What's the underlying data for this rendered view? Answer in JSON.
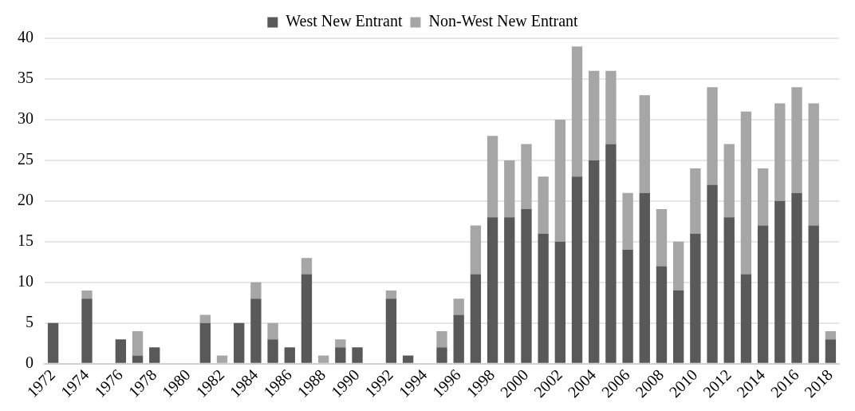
{
  "chart_data": {
    "type": "bar",
    "stacked": true,
    "legend": "top",
    "grid": "y",
    "categories": [
      "1972",
      null,
      "1974",
      null,
      "1976",
      null,
      "1978",
      null,
      "1980",
      null,
      "1982",
      null,
      "1984",
      null,
      "1986",
      null,
      "1988",
      null,
      "1990",
      null,
      "1992",
      null,
      "1994",
      null,
      "1996",
      null,
      "1998",
      null,
      "2000",
      null,
      "2002",
      null,
      "2004",
      null,
      "2006",
      null,
      "2008",
      null,
      "2010",
      null,
      "2012",
      null,
      "2014",
      null,
      "2016",
      null,
      "2018"
    ],
    "series": [
      {
        "name": "West New Entrant",
        "color": "#595959",
        "values": [
          5,
          0,
          8,
          0,
          3,
          1,
          2,
          0,
          0,
          5,
          0,
          5,
          8,
          3,
          2,
          11,
          0,
          2,
          2,
          0,
          8,
          1,
          0,
          2,
          6,
          11,
          18,
          18,
          19,
          16,
          15,
          23,
          25,
          27,
          14,
          21,
          12,
          9,
          16,
          22,
          18,
          11,
          17,
          20,
          21,
          17,
          3
        ]
      },
      {
        "name": "Non-West New Entrant",
        "color": "#a6a6a6",
        "values": [
          0,
          0,
          1,
          0,
          0,
          3,
          0,
          0,
          0,
          1,
          1,
          0,
          2,
          2,
          0,
          2,
          1,
          1,
          0,
          0,
          1,
          0,
          0,
          2,
          2,
          6,
          10,
          7,
          8,
          7,
          15,
          16,
          11,
          9,
          7,
          12,
          7,
          6,
          8,
          12,
          9,
          20,
          7,
          12,
          13,
          15,
          1
        ]
      }
    ],
    "ylim": [
      0,
      40
    ],
    "yticks": [
      0,
      5,
      10,
      15,
      20,
      25,
      30,
      35,
      40
    ]
  }
}
